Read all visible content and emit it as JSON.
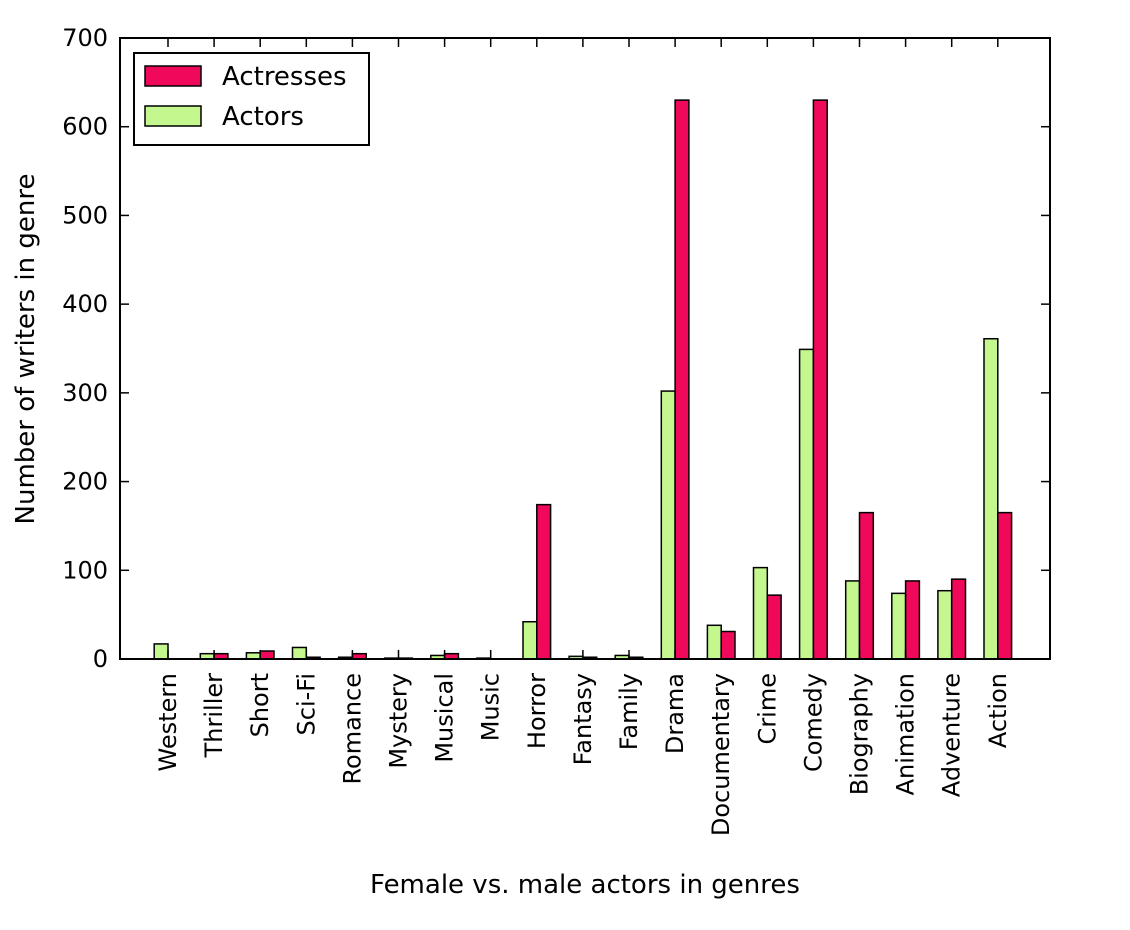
{
  "chart_data": {
    "type": "bar",
    "title": "",
    "xlabel": "Female vs. male actors in genres",
    "ylabel": "Number of writers in genre",
    "ylim": [
      0,
      700
    ],
    "yticks": [
      0,
      100,
      200,
      300,
      400,
      500,
      600,
      700
    ],
    "grid": false,
    "legend_position": "top-left",
    "categories": [
      "Western",
      "Thriller",
      "Short",
      "Sci-Fi",
      "Romance",
      "Mystery",
      "Musical",
      "Music",
      "Horror",
      "Fantasy",
      "Family",
      "Drama",
      "Documentary",
      "Crime",
      "Comedy",
      "Biography",
      "Animation",
      "Adventure",
      "Action"
    ],
    "series": [
      {
        "name": "Actors",
        "color": "#c4f78e",
        "values": [
          17,
          6,
          7,
          13,
          2,
          1,
          4,
          1,
          42,
          3,
          4,
          302,
          38,
          103,
          349,
          88,
          74,
          77,
          361
        ]
      },
      {
        "name": "Actresses",
        "color": "#f0085a",
        "values": [
          0,
          6,
          9,
          2,
          6,
          1,
          6,
          0,
          174,
          2,
          2,
          630,
          31,
          72,
          630,
          165,
          88,
          90,
          165
        ]
      }
    ],
    "legend_order": [
      "Actresses",
      "Actors"
    ]
  }
}
